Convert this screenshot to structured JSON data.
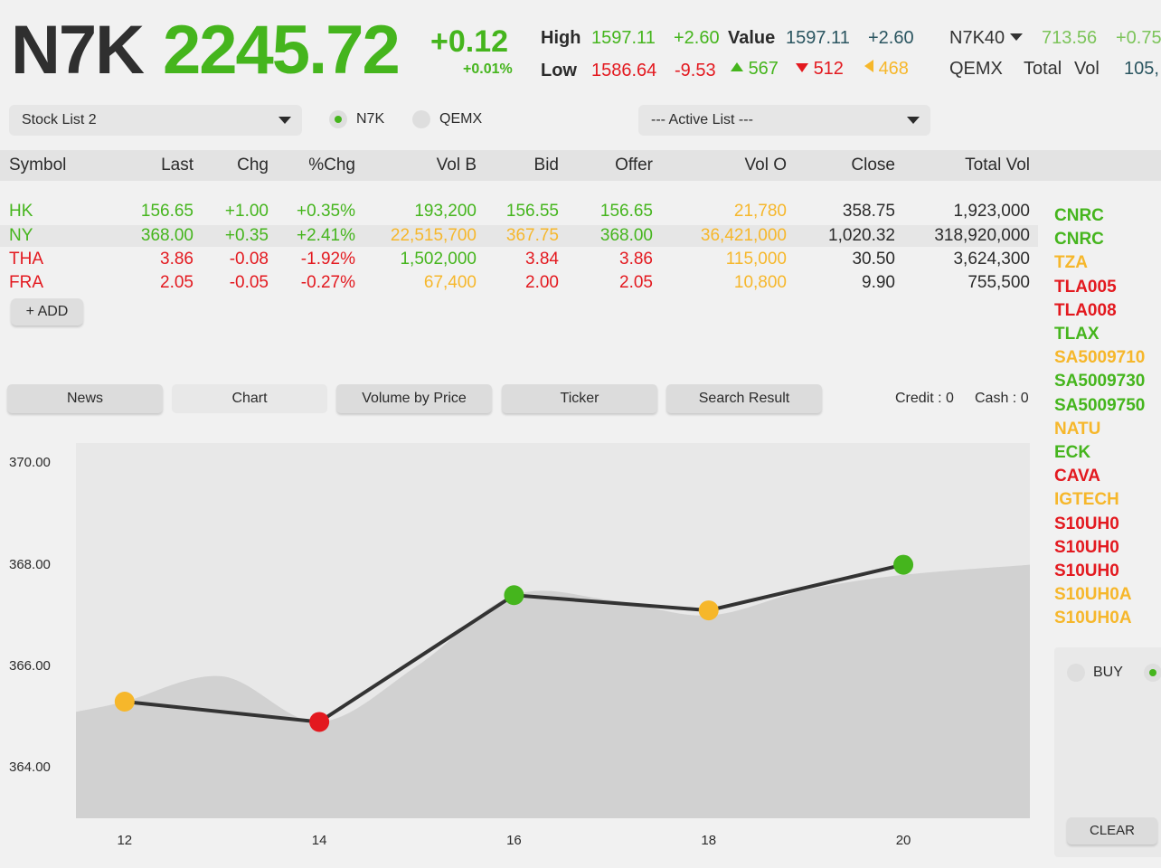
{
  "header": {
    "index_name": "N7K",
    "index_value": "2245.72",
    "change": "+0.12",
    "change_pct": "+0.01%",
    "high_label": "High",
    "high_value": "1597.11",
    "high_change": "+2.60",
    "value_label": "Value",
    "value_value": "1597.11",
    "value_change": "+2.60",
    "low_label": "Low",
    "low_value": "1586.64",
    "low_change": "-9.53",
    "up_count": "567",
    "down_count": "512",
    "unch_count": "468",
    "sub_index": "N7K40",
    "sub_index_value": "713.56",
    "sub_index_change": "+0.75",
    "market2": "QEMX",
    "total_label": "Total",
    "vol_label": "Vol",
    "total_vol": "105,"
  },
  "controls": {
    "stock_list": "Stock List 2",
    "radio_n7k": "N7K",
    "radio_qemx": "QEMX",
    "active_list": "--- Active List ---",
    "add_label": "+ ADD"
  },
  "table": {
    "headers": [
      "Symbol",
      "Last",
      "Chg",
      "%Chg",
      "Vol B",
      "Bid",
      "Offer",
      "Vol O",
      "Close",
      "Total Vol"
    ],
    "rows": [
      {
        "symbol": "HK",
        "last": "156.65",
        "chg": "+1.00",
        "pct": "+0.35%",
        "volb": "193,200",
        "bid": "156.55",
        "offer": "156.65",
        "volo": "21,780",
        "close": "358.75",
        "total": "1,923,000"
      },
      {
        "symbol": "NY",
        "last": "368.00",
        "chg": "+0.35",
        "pct": "+2.41%",
        "volb": "22,515,700",
        "bid": "367.75",
        "offer": "368.00",
        "volo": "36,421,000",
        "close": "1,020.32",
        "total": "318,920,000"
      },
      {
        "symbol": "THA",
        "last": "3.86",
        "chg": "-0.08",
        "pct": "-1.92%",
        "volb": "1,502,000",
        "bid": "3.84",
        "offer": "3.86",
        "volo": "115,000",
        "close": "30.50",
        "total": "3,624,300"
      },
      {
        "symbol": "FRA",
        "last": "2.05",
        "chg": "-0.05",
        "pct": "-0.27%",
        "volb": "67,400",
        "bid": "2.00",
        "offer": "2.05",
        "volo": "10,800",
        "close": "9.90",
        "total": "755,500"
      }
    ]
  },
  "tabs": [
    "News",
    "Chart",
    "Volume by Price",
    "Ticker",
    "Search Result"
  ],
  "account": {
    "credit": "Credit : 0",
    "cash": "Cash : 0"
  },
  "watchlist": [
    "CNRC",
    "CNRC",
    "TZA",
    "TLA005",
    "TLA008",
    "TLAX",
    "SA5009710",
    "SA5009730",
    "SA5009750",
    "NATU",
    "ECK",
    "CAVA",
    "IGTECH",
    "S10UH0",
    "S10UH0",
    "S10UH0",
    "S10UH0A",
    "S10UH0A"
  ],
  "order": {
    "buy_label": "BUY",
    "clear_label": "CLEAR"
  },
  "colors": {
    "up": "#45b51d",
    "down": "#e3191f",
    "unchanged": "#f6b72b",
    "neutral": "#2b2b2b"
  },
  "chart_data": {
    "type": "line",
    "x": [
      12,
      14,
      16,
      18,
      20
    ],
    "x_ticks": [
      "12",
      "14",
      "16",
      "18",
      "20"
    ],
    "y_ticks": [
      "370.00",
      "368.00",
      "366.00",
      "364.00"
    ],
    "ylim": [
      363.0,
      370.4
    ],
    "xlim": [
      11.5,
      21.3
    ],
    "series": [
      {
        "values": [
          365.3,
          364.9,
          367.4,
          367.1,
          368.0
        ],
        "point_colors": [
          "#f6b72b",
          "#e3191f",
          "#45b51d",
          "#f6b72b",
          "#45b51d"
        ]
      }
    ],
    "area": {
      "x": [
        11.5,
        12.0,
        13.0,
        14.0,
        15.0,
        16.0,
        17.0,
        18.0,
        19.0,
        20.0,
        21.3
      ],
      "values": [
        365.1,
        365.3,
        365.8,
        364.9,
        366.0,
        367.4,
        367.3,
        367.0,
        367.5,
        367.8,
        368.0
      ]
    }
  }
}
